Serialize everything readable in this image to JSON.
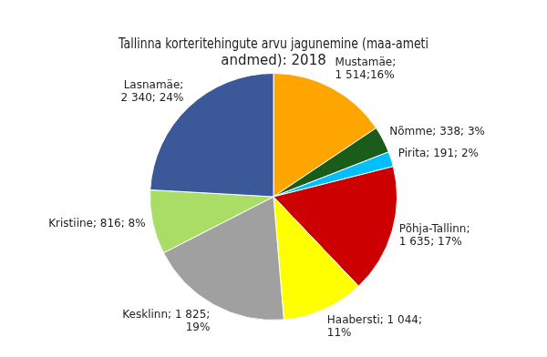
{
  "chart_data": {
    "type": "pie",
    "title": "Tallinna korteritehingute arvu jagunemine (maa-ameti\nandmed): 2018",
    "categories": [
      "Mustamäe;\n1 514;16%",
      "Nõmme; 338; 3%",
      "Pirita; 191; 2%",
      "Põhja-Tallinn;\n1 635; 17%",
      "Haabersti; 1 044;\n11%",
      "Kesklinn; 1 825;\n19%",
      "Kristiine; 816; 8%",
      "Lasnamäe;\n2 340; 24%"
    ],
    "values": [
      1514,
      338,
      191,
      1635,
      1044,
      1825,
      816,
      2340
    ],
    "colors": [
      "#FFA500",
      "#1a5c1a",
      "#00BFFF",
      "#CC0000",
      "#FFFF00",
      "#A0A0A0",
      "#AADD66",
      "#3B5998"
    ]
  }
}
